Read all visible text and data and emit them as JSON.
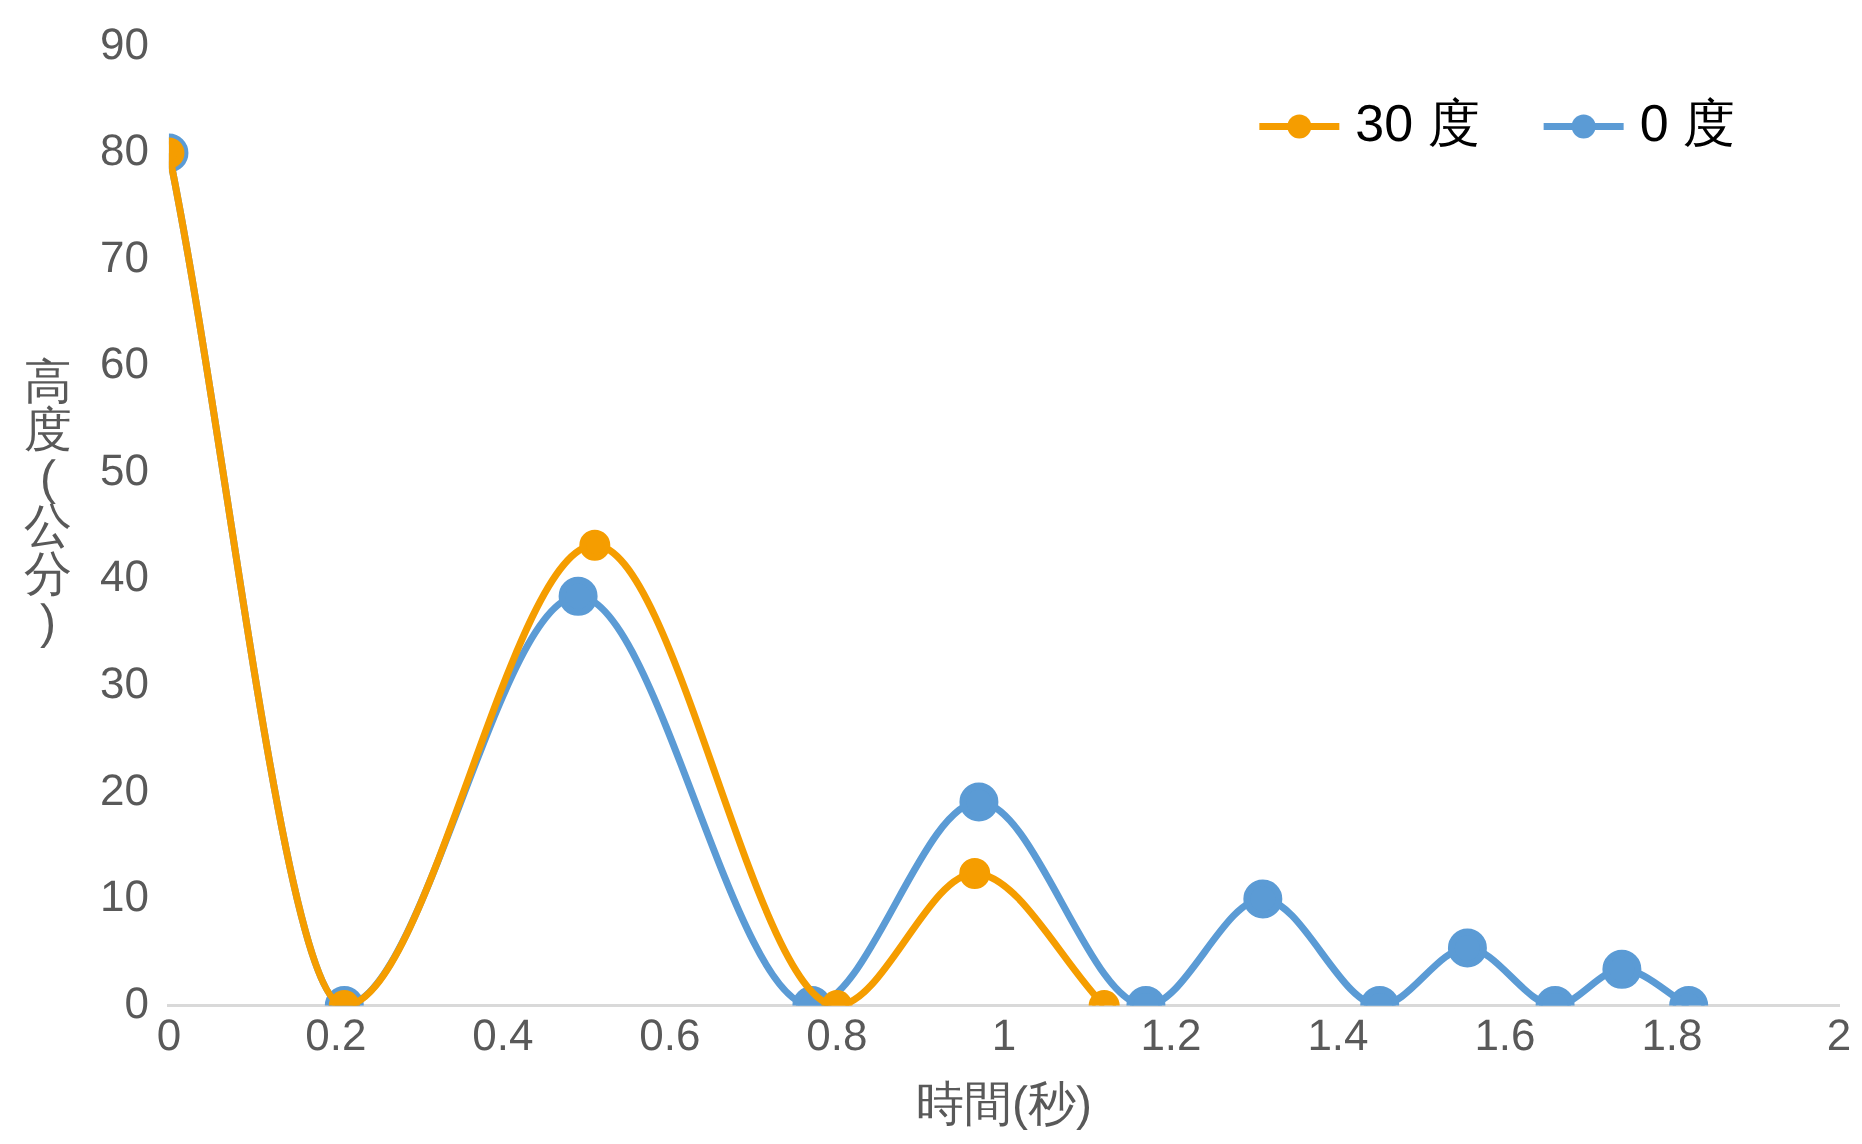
{
  "chart_data": {
    "type": "line",
    "xlabel": "時間(秒)",
    "ylabel": "高度(公分)",
    "xlim": [
      0,
      2
    ],
    "xticks": [
      0,
      0.2,
      0.4,
      0.6,
      0.8,
      1,
      1.2,
      1.4,
      1.6,
      1.8,
      2
    ],
    "ylim": [
      0,
      90
    ],
    "yticks": [
      0,
      10,
      20,
      30,
      40,
      50,
      60,
      70,
      80,
      90
    ],
    "grid": false,
    "legend": "top right",
    "marker": "circle",
    "line_style": "solid",
    "series": [
      {
        "name": "30 度",
        "color": "#f59d00",
        "x": [
          0,
          0.21,
          0.51,
          0.8,
          0.965,
          1.12
        ],
        "values": [
          80,
          0,
          43.2,
          0,
          12.4,
          0
        ]
      },
      {
        "name": "0 度",
        "color": "#5b9bd5",
        "x": [
          0,
          0.21,
          0.49,
          0.77,
          0.97,
          1.17,
          1.31,
          1.45,
          1.555,
          1.66,
          1.74,
          1.82
        ],
        "values": [
          80,
          0,
          38.4,
          0,
          19.1,
          0,
          10,
          0,
          5.4,
          0,
          3.4,
          0
        ]
      }
    ]
  }
}
